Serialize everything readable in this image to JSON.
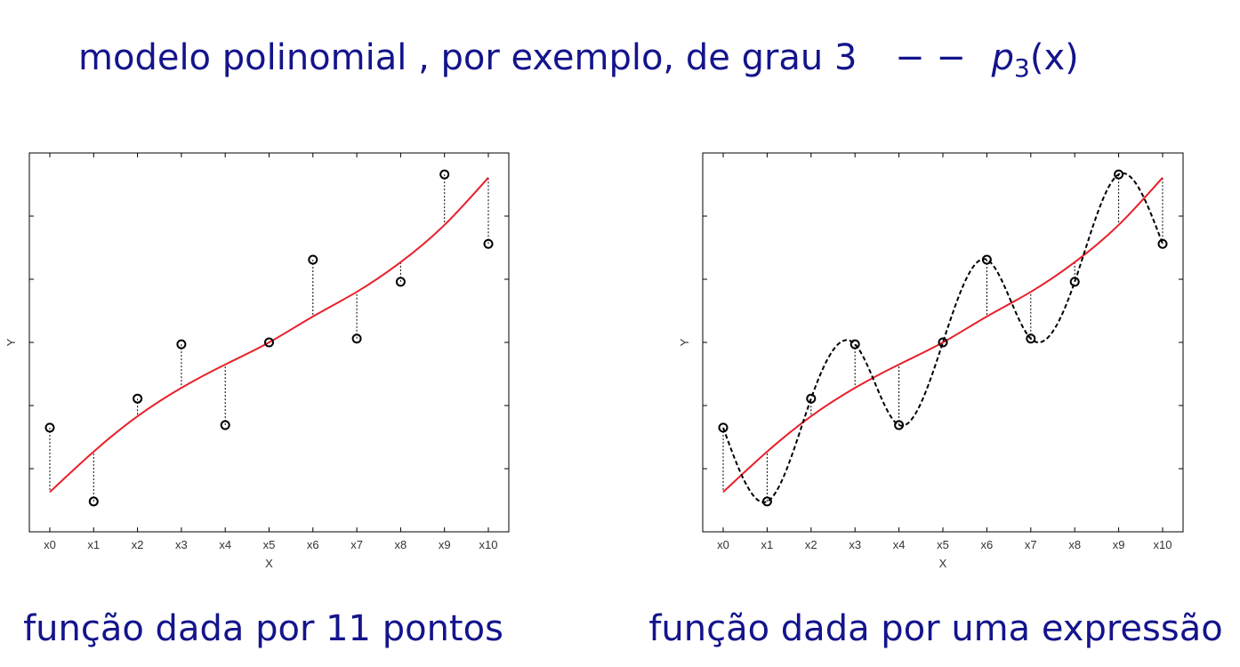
{
  "slide": {
    "title": "modelo polinomial , por exemplo, de grau 3",
    "dash": "− −",
    "func": "p",
    "sub": "3",
    "arg": "(x)"
  },
  "chart_data": [
    {
      "type": "line",
      "caption": "função dada por 11 pontos",
      "x_label": "X",
      "y_label": "Y",
      "categories": [
        "x0",
        "x1",
        "x2",
        "x3",
        "x4",
        "x5",
        "x6",
        "x7",
        "x8",
        "x9",
        "x10"
      ],
      "ylim": [
        0,
        6
      ],
      "yticks": [
        1,
        2,
        3,
        4,
        5
      ],
      "residuals": true,
      "series": [
        {
          "color": "#000000",
          "style": "markers",
          "values": [
            1.65,
            0.48,
            2.11,
            2.97,
            1.69,
            3.0,
            4.31,
            3.06,
            3.96,
            5.66,
            4.56
          ]
        },
        {
          "color": "#e8202a",
          "style": "solid",
          "values": [
            0.63,
            1.27,
            1.83,
            2.28,
            2.65,
            3.0,
            3.41,
            3.8,
            4.27,
            4.86,
            5.61
          ]
        }
      ]
    },
    {
      "type": "line",
      "caption": "função dada por uma expressão",
      "x_label": "X",
      "y_label": "Y",
      "categories": [
        "x0",
        "x1",
        "x2",
        "x3",
        "x4",
        "x5",
        "x6",
        "x7",
        "x8",
        "x9",
        "x10"
      ],
      "ylim": [
        0,
        6
      ],
      "yticks": [
        1,
        2,
        3,
        4,
        5
      ],
      "residuals": true,
      "series": [
        {
          "color": "#000000",
          "style": "markers",
          "values": [
            1.65,
            0.48,
            2.11,
            2.97,
            1.69,
            3.0,
            4.31,
            3.06,
            3.96,
            5.66,
            4.56
          ]
        },
        {
          "color": "#e8202a",
          "style": "solid",
          "values": [
            0.63,
            1.27,
            1.83,
            2.28,
            2.65,
            3.0,
            3.41,
            3.8,
            4.27,
            4.86,
            5.61
          ]
        },
        {
          "color": "#000000",
          "style": "dashed",
          "values": [
            1.65,
            0.48,
            2.11,
            2.97,
            1.69,
            3.0,
            4.31,
            3.06,
            3.96,
            5.66,
            4.56
          ]
        }
      ]
    }
  ]
}
